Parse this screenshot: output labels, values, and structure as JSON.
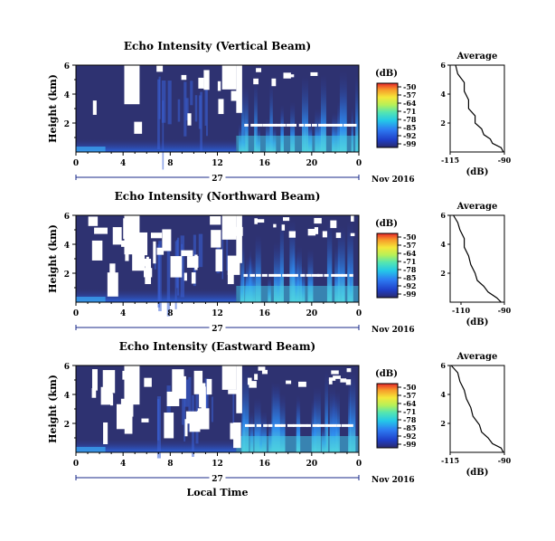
{
  "chart_data": [
    {
      "type": "heatmap",
      "title": "Echo Intensity (Vertical Beam)",
      "ylabel": "Height (km)",
      "yticks": [
        "6",
        "4",
        "2"
      ],
      "ylim": [
        0,
        6
      ],
      "xlim": [
        0,
        24
      ],
      "xticks": [
        "0",
        "4",
        "8",
        "12",
        "16",
        "20",
        "0"
      ],
      "date_day": "27",
      "date_label": "Nov 2016",
      "colorbar_label": "(dB)",
      "colorbar_ticks": [
        "-50",
        "-57",
        "-64",
        "-71",
        "-78",
        "-85",
        "-92",
        "-99"
      ],
      "average": {
        "title": "Average",
        "xlabel": "(dB)",
        "xticks": [
          "-115",
          "-90"
        ],
        "xlim": [
          -115,
          -90
        ],
        "yticks": [
          "6",
          "4",
          "2"
        ],
        "profile": [
          [
            -90,
            0
          ],
          [
            -92,
            0.3
          ],
          [
            -95,
            0.6
          ],
          [
            -97,
            0.9
          ],
          [
            -99,
            1.2
          ],
          [
            -101,
            1.6
          ],
          [
            -103,
            2.0
          ],
          [
            -104,
            2.5
          ],
          [
            -106,
            3.0
          ],
          [
            -107,
            3.6
          ],
          [
            -108,
            4.2
          ],
          [
            -109,
            4.8
          ],
          [
            -111,
            5.4
          ],
          [
            -113,
            6.0
          ]
        ]
      }
    },
    {
      "type": "heatmap",
      "title": "Echo Intensity (Northward Beam)",
      "ylabel": "Height (km)",
      "yticks": [
        "6",
        "4",
        "2"
      ],
      "ylim": [
        0,
        6
      ],
      "xlim": [
        0,
        24
      ],
      "xticks": [
        "0",
        "4",
        "8",
        "12",
        "16",
        "20",
        "0"
      ],
      "date_day": "27",
      "date_label": "Nov 2016",
      "colorbar_label": "(dB)",
      "colorbar_ticks": [
        "-50",
        "-57",
        "-64",
        "-71",
        "-78",
        "-85",
        "-92",
        "-99"
      ],
      "average": {
        "title": "Average",
        "xlabel": "(dB)",
        "xticks": [
          "-110",
          "-90"
        ],
        "xlim": [
          -115,
          -90
        ],
        "yticks": [
          "6",
          "4",
          "2"
        ],
        "profile": [
          [
            -91,
            0
          ],
          [
            -94,
            0.3
          ],
          [
            -97,
            0.7
          ],
          [
            -100,
            1.1
          ],
          [
            -102,
            1.5
          ],
          [
            -104,
            2.0
          ],
          [
            -105,
            2.6
          ],
          [
            -107,
            3.2
          ],
          [
            -108,
            3.8
          ],
          [
            -109,
            4.4
          ],
          [
            -110,
            5.0
          ],
          [
            -112,
            5.5
          ],
          [
            -113,
            6.0
          ]
        ]
      }
    },
    {
      "type": "heatmap",
      "title": "Echo Intensity (Eastward Beam)",
      "ylabel": "Height (km)",
      "yticks": [
        "6",
        "4",
        "2"
      ],
      "ylim": [
        0,
        6
      ],
      "xlim": [
        0,
        24
      ],
      "xticks": [
        "0",
        "4",
        "8",
        "12",
        "16",
        "20",
        "0"
      ],
      "date_day": "27",
      "date_label": "Nov 2016",
      "colorbar_label": "(dB)",
      "colorbar_ticks": [
        "-50",
        "-57",
        "-64",
        "-71",
        "-78",
        "-85",
        "-92",
        "-99"
      ],
      "average": {
        "title": "Average",
        "xlabel": "(dB)",
        "xticks": [
          "-115",
          "-90"
        ],
        "xlim": [
          -115,
          -90
        ],
        "yticks": [
          "6",
          "4",
          "2"
        ],
        "profile": [
          [
            -90,
            0
          ],
          [
            -92,
            0.3
          ],
          [
            -95,
            0.6
          ],
          [
            -98,
            1.0
          ],
          [
            -100,
            1.4
          ],
          [
            -102,
            1.9
          ],
          [
            -104,
            2.5
          ],
          [
            -106,
            3.1
          ],
          [
            -107,
            3.7
          ],
          [
            -109,
            4.3
          ],
          [
            -110,
            4.9
          ],
          [
            -112,
            5.5
          ],
          [
            -114,
            6.0
          ]
        ]
      }
    }
  ],
  "xlabel": "Local Time"
}
